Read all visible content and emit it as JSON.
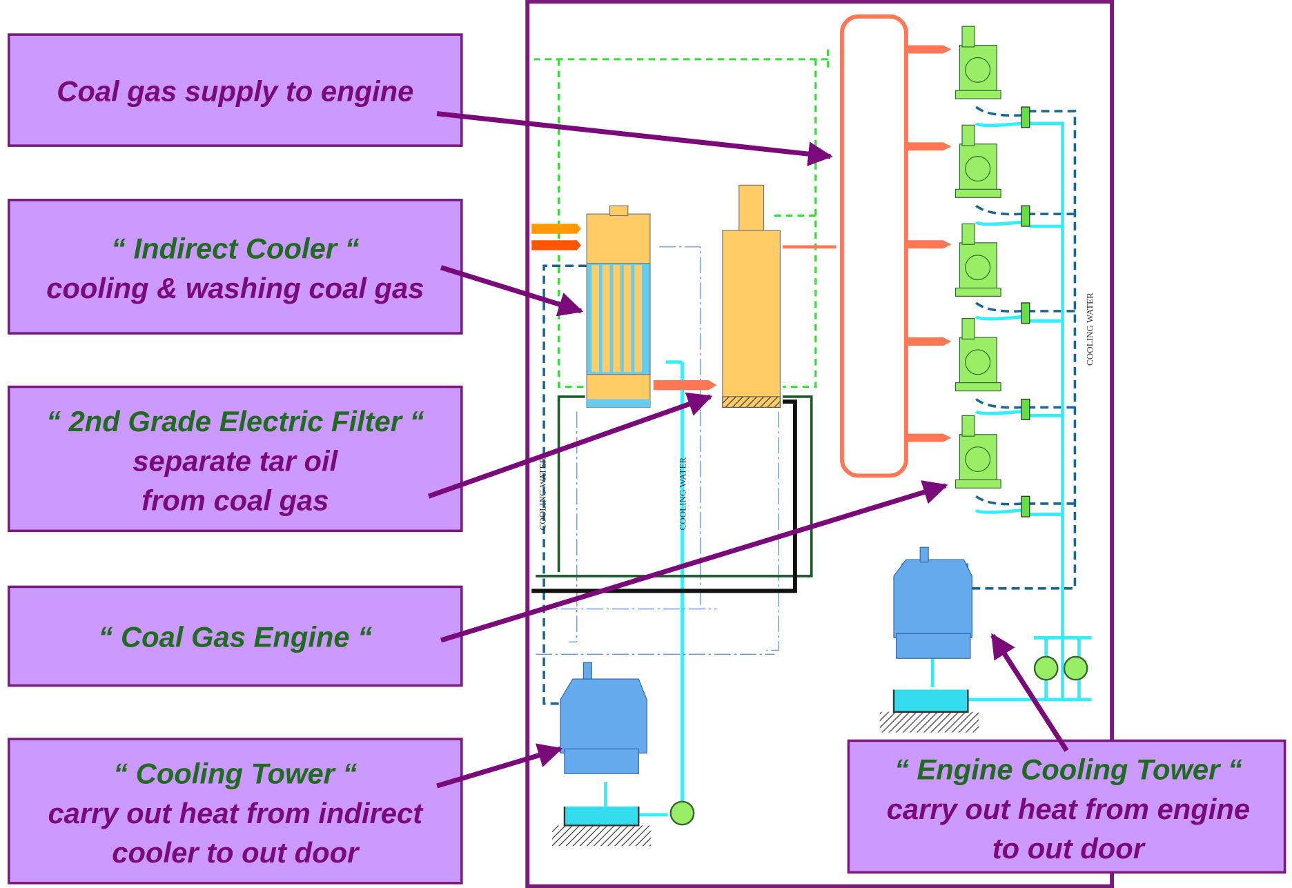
{
  "callouts": [
    {
      "lines": [
        "Coal gas supply to engine"
      ]
    },
    {
      "lines": [
        "“ Indirect Cooler “",
        "cooling & washing coal gas"
      ]
    },
    {
      "lines": [
        "“ 2nd Grade Electric Filter “",
        "separate tar oil",
        "from coal gas"
      ]
    },
    {
      "lines": [
        "“ Coal Gas Engine “"
      ]
    },
    {
      "lines": [
        "“ Cooling Tower “",
        "carry out heat from indirect",
        "cooler to out door"
      ]
    },
    {
      "lines": [
        "“ Engine Cooling Tower “",
        "carry out heat from engine",
        "to out door"
      ]
    }
  ],
  "pipe_labels": [
    "COOLING WATER",
    "COOLING WATER",
    "COOLING WATER"
  ]
}
